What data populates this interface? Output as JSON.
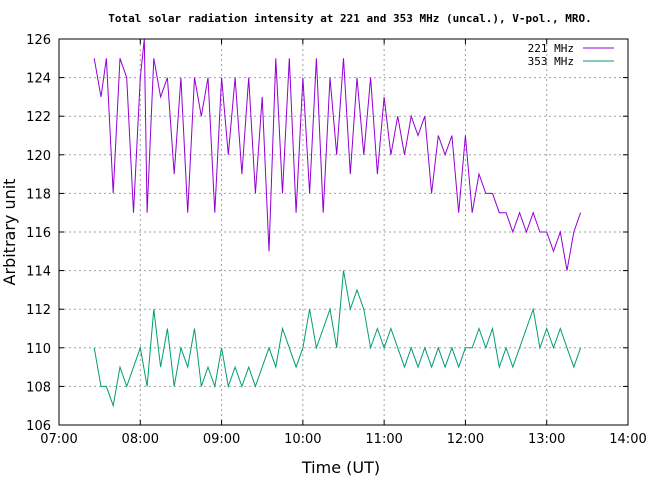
{
  "chart_data": {
    "type": "line",
    "title": "Total solar radiation intensity at 221 and 353 MHz (uncal.), V-pol., MRO.",
    "xlabel": "Time (UT)",
    "ylabel": "Arbitrary unit",
    "xlim": [
      "07:00",
      "14:00"
    ],
    "ylim": [
      106,
      126
    ],
    "xticks": [
      "07:00",
      "08:00",
      "09:00",
      "10:00",
      "11:00",
      "12:00",
      "13:00",
      "14:00"
    ],
    "yticks": [
      106,
      108,
      110,
      112,
      114,
      116,
      118,
      120,
      122,
      124,
      126
    ],
    "grid": true,
    "legend_position": "top-right",
    "series": [
      {
        "name": "221 MHz",
        "color": "#9400d3",
        "points": [
          [
            "07:26",
            125
          ],
          [
            "07:31",
            123
          ],
          [
            "07:35",
            125
          ],
          [
            "07:40",
            118
          ],
          [
            "07:45",
            125
          ],
          [
            "07:50",
            124
          ],
          [
            "07:55",
            117
          ],
          [
            "08:00",
            124
          ],
          [
            "08:03",
            126
          ],
          [
            "08:05",
            117
          ],
          [
            "08:10",
            125
          ],
          [
            "08:15",
            123
          ],
          [
            "08:20",
            124
          ],
          [
            "08:25",
            119
          ],
          [
            "08:30",
            124
          ],
          [
            "08:35",
            117
          ],
          [
            "08:40",
            124
          ],
          [
            "08:45",
            122
          ],
          [
            "08:50",
            124
          ],
          [
            "08:55",
            117
          ],
          [
            "09:00",
            124
          ],
          [
            "09:05",
            120
          ],
          [
            "09:10",
            124
          ],
          [
            "09:15",
            119
          ],
          [
            "09:20",
            124
          ],
          [
            "09:25",
            118
          ],
          [
            "09:30",
            123
          ],
          [
            "09:35",
            115
          ],
          [
            "09:40",
            125
          ],
          [
            "09:45",
            118
          ],
          [
            "09:50",
            125
          ],
          [
            "09:55",
            117
          ],
          [
            "10:00",
            124
          ],
          [
            "10:05",
            118
          ],
          [
            "10:10",
            125
          ],
          [
            "10:15",
            117
          ],
          [
            "10:20",
            124
          ],
          [
            "10:25",
            120
          ],
          [
            "10:30",
            125
          ],
          [
            "10:35",
            119
          ],
          [
            "10:40",
            124
          ],
          [
            "10:45",
            120
          ],
          [
            "10:50",
            124
          ],
          [
            "10:55",
            119
          ],
          [
            "11:00",
            123
          ],
          [
            "11:05",
            120
          ],
          [
            "11:10",
            122
          ],
          [
            "11:15",
            120
          ],
          [
            "11:20",
            122
          ],
          [
            "11:25",
            121
          ],
          [
            "11:30",
            122
          ],
          [
            "11:35",
            118
          ],
          [
            "11:40",
            121
          ],
          [
            "11:45",
            120
          ],
          [
            "11:50",
            121
          ],
          [
            "11:55",
            117
          ],
          [
            "12:00",
            121
          ],
          [
            "12:05",
            117
          ],
          [
            "12:10",
            119
          ],
          [
            "12:15",
            118
          ],
          [
            "12:20",
            118
          ],
          [
            "12:25",
            117
          ],
          [
            "12:30",
            117
          ],
          [
            "12:35",
            116
          ],
          [
            "12:40",
            117
          ],
          [
            "12:45",
            116
          ],
          [
            "12:50",
            117
          ],
          [
            "12:55",
            116
          ],
          [
            "13:00",
            116
          ],
          [
            "13:05",
            115
          ],
          [
            "13:10",
            116
          ],
          [
            "13:15",
            114
          ],
          [
            "13:20",
            116
          ],
          [
            "13:25",
            117
          ]
        ]
      },
      {
        "name": "353 MHz",
        "color": "#009e73",
        "points": [
          [
            "07:26",
            110
          ],
          [
            "07:31",
            108
          ],
          [
            "07:35",
            108
          ],
          [
            "07:40",
            107
          ],
          [
            "07:45",
            109
          ],
          [
            "07:50",
            108
          ],
          [
            "07:55",
            109
          ],
          [
            "08:00",
            110
          ],
          [
            "08:05",
            108
          ],
          [
            "08:10",
            112
          ],
          [
            "08:15",
            109
          ],
          [
            "08:20",
            111
          ],
          [
            "08:25",
            108
          ],
          [
            "08:30",
            110
          ],
          [
            "08:35",
            109
          ],
          [
            "08:40",
            111
          ],
          [
            "08:45",
            108
          ],
          [
            "08:50",
            109
          ],
          [
            "08:55",
            108
          ],
          [
            "09:00",
            110
          ],
          [
            "09:05",
            108
          ],
          [
            "09:10",
            109
          ],
          [
            "09:15",
            108
          ],
          [
            "09:20",
            109
          ],
          [
            "09:25",
            108
          ],
          [
            "09:30",
            109
          ],
          [
            "09:35",
            110
          ],
          [
            "09:40",
            109
          ],
          [
            "09:45",
            111
          ],
          [
            "09:50",
            110
          ],
          [
            "09:55",
            109
          ],
          [
            "10:00",
            110
          ],
          [
            "10:05",
            112
          ],
          [
            "10:10",
            110
          ],
          [
            "10:15",
            111
          ],
          [
            "10:20",
            112
          ],
          [
            "10:25",
            110
          ],
          [
            "10:30",
            114
          ],
          [
            "10:35",
            112
          ],
          [
            "10:40",
            113
          ],
          [
            "10:45",
            112
          ],
          [
            "10:50",
            110
          ],
          [
            "10:55",
            111
          ],
          [
            "11:00",
            110
          ],
          [
            "11:05",
            111
          ],
          [
            "11:10",
            110
          ],
          [
            "11:15",
            109
          ],
          [
            "11:20",
            110
          ],
          [
            "11:25",
            109
          ],
          [
            "11:30",
            110
          ],
          [
            "11:35",
            109
          ],
          [
            "11:40",
            110
          ],
          [
            "11:45",
            109
          ],
          [
            "11:50",
            110
          ],
          [
            "11:55",
            109
          ],
          [
            "12:00",
            110
          ],
          [
            "12:05",
            110
          ],
          [
            "12:10",
            111
          ],
          [
            "12:15",
            110
          ],
          [
            "12:20",
            111
          ],
          [
            "12:25",
            109
          ],
          [
            "12:30",
            110
          ],
          [
            "12:35",
            109
          ],
          [
            "12:40",
            110
          ],
          [
            "12:45",
            111
          ],
          [
            "12:50",
            112
          ],
          [
            "12:55",
            110
          ],
          [
            "13:00",
            111
          ],
          [
            "13:05",
            110
          ],
          [
            "13:10",
            111
          ],
          [
            "13:15",
            110
          ],
          [
            "13:20",
            109
          ],
          [
            "13:25",
            110
          ]
        ]
      }
    ]
  }
}
